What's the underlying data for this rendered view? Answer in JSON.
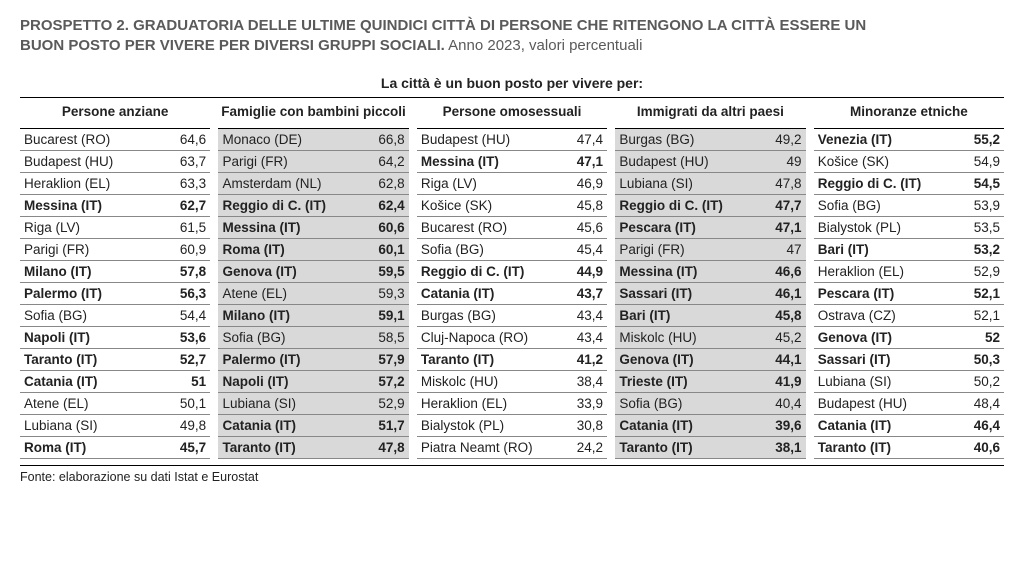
{
  "title_line1": "PROSPETTO 2. GRADUATORIA DELLE ULTIME QUINDICI CITTÀ DI PERSONE CHE RITENGONO LA CITTÀ ESSERE UN",
  "title_line2": "BUON POSTO PER VIVERE PER DIVERSI GRUPPI SOCIALI.",
  "subtitle": " Anno 2023, valori percentuali",
  "super_header": "La città è un buon posto per vivere per:",
  "footer": "Fonte: elaborazione su dati Istat e Eurostat",
  "style": {
    "bold_color": "#000000",
    "shade_bg": "#d9d9d9",
    "border_color": "#888888",
    "title_color": "#5a5a5a",
    "fontsize_body": 13.5,
    "fontsize_title": 15
  },
  "groups": [
    {
      "label": "Persone anziane",
      "shaded": false
    },
    {
      "label": "Famiglie con bambini piccoli",
      "shaded": true
    },
    {
      "label": "Persone omosessuali",
      "shaded": false
    },
    {
      "label": "Immigrati da altri paesi",
      "shaded": true
    },
    {
      "label": "Minoranze etniche",
      "shaded": false
    }
  ],
  "rows": [
    [
      {
        "city": "Bucarest (RO)",
        "val": "64,6",
        "bold": false
      },
      {
        "city": "Monaco (DE)",
        "val": "66,8",
        "bold": false
      },
      {
        "city": "Budapest (HU)",
        "val": "47,4",
        "bold": false
      },
      {
        "city": "Burgas (BG)",
        "val": "49,2",
        "bold": false
      },
      {
        "city": "Venezia (IT)",
        "val": "55,2",
        "bold": true
      }
    ],
    [
      {
        "city": "Budapest (HU)",
        "val": "63,7",
        "bold": false
      },
      {
        "city": "Parigi (FR)",
        "val": "64,2",
        "bold": false
      },
      {
        "city": "Messina (IT)",
        "val": "47,1",
        "bold": true
      },
      {
        "city": "Budapest (HU)",
        "val": "49",
        "bold": false
      },
      {
        "city": "Košice (SK)",
        "val": "54,9",
        "bold": false
      }
    ],
    [
      {
        "city": "Heraklion (EL)",
        "val": "63,3",
        "bold": false
      },
      {
        "city": "Amsterdam (NL)",
        "val": "62,8",
        "bold": false
      },
      {
        "city": "Riga (LV)",
        "val": "46,9",
        "bold": false
      },
      {
        "city": "Lubiana (SI)",
        "val": "47,8",
        "bold": false
      },
      {
        "city": "Reggio di C. (IT)",
        "val": "54,5",
        "bold": true
      }
    ],
    [
      {
        "city": "Messina (IT)",
        "val": "62,7",
        "bold": true
      },
      {
        "city": "Reggio di C. (IT)",
        "val": "62,4",
        "bold": true
      },
      {
        "city": "Košice (SK)",
        "val": "45,8",
        "bold": false
      },
      {
        "city": "Reggio di C. (IT)",
        "val": "47,7",
        "bold": true
      },
      {
        "city": "Sofia (BG)",
        "val": "53,9",
        "bold": false
      }
    ],
    [
      {
        "city": "Riga (LV)",
        "val": "61,5",
        "bold": false
      },
      {
        "city": "Messina (IT)",
        "val": "60,6",
        "bold": true
      },
      {
        "city": "Bucarest (RO)",
        "val": "45,6",
        "bold": false
      },
      {
        "city": "Pescara (IT)",
        "val": "47,1",
        "bold": true
      },
      {
        "city": "Bialystok (PL)",
        "val": "53,5",
        "bold": false
      }
    ],
    [
      {
        "city": "Parigi (FR)",
        "val": "60,9",
        "bold": false
      },
      {
        "city": "Roma (IT)",
        "val": "60,1",
        "bold": true
      },
      {
        "city": "Sofia (BG)",
        "val": "45,4",
        "bold": false
      },
      {
        "city": "Parigi (FR)",
        "val": "47",
        "bold": false
      },
      {
        "city": "Bari (IT)",
        "val": "53,2",
        "bold": true
      }
    ],
    [
      {
        "city": "Milano (IT)",
        "val": "57,8",
        "bold": true
      },
      {
        "city": "Genova (IT)",
        "val": "59,5",
        "bold": true
      },
      {
        "city": "Reggio di C. (IT)",
        "val": "44,9",
        "bold": true
      },
      {
        "city": "Messina (IT)",
        "val": "46,6",
        "bold": true
      },
      {
        "city": "Heraklion (EL)",
        "val": "52,9",
        "bold": false
      }
    ],
    [
      {
        "city": "Palermo (IT)",
        "val": "56,3",
        "bold": true
      },
      {
        "city": "Atene (EL)",
        "val": "59,3",
        "bold": false
      },
      {
        "city": "Catania (IT)",
        "val": "43,7",
        "bold": true
      },
      {
        "city": "Sassari (IT)",
        "val": "46,1",
        "bold": true
      },
      {
        "city": "Pescara (IT)",
        "val": "52,1",
        "bold": true
      }
    ],
    [
      {
        "city": "Sofia (BG)",
        "val": "54,4",
        "bold": false
      },
      {
        "city": "Milano (IT)",
        "val": "59,1",
        "bold": true
      },
      {
        "city": "Burgas (BG)",
        "val": "43,4",
        "bold": false
      },
      {
        "city": "Bari (IT)",
        "val": "45,8",
        "bold": true
      },
      {
        "city": "Ostrava (CZ)",
        "val": "52,1",
        "bold": false
      }
    ],
    [
      {
        "city": "Napoli (IT)",
        "val": "53,6",
        "bold": true
      },
      {
        "city": "Sofia (BG)",
        "val": "58,5",
        "bold": false
      },
      {
        "city": "Cluj-Napoca (RO)",
        "val": "43,4",
        "bold": false
      },
      {
        "city": "Miskolc (HU)",
        "val": "45,2",
        "bold": false
      },
      {
        "city": "Genova (IT)",
        "val": "52",
        "bold": true
      }
    ],
    [
      {
        "city": "Taranto (IT)",
        "val": "52,7",
        "bold": true
      },
      {
        "city": "Palermo (IT)",
        "val": "57,9",
        "bold": true
      },
      {
        "city": "Taranto (IT)",
        "val": "41,2",
        "bold": true
      },
      {
        "city": "Genova (IT)",
        "val": "44,1",
        "bold": true
      },
      {
        "city": "Sassari (IT)",
        "val": "50,3",
        "bold": true
      }
    ],
    [
      {
        "city": "Catania (IT)",
        "val": "51",
        "bold": true
      },
      {
        "city": "Napoli (IT)",
        "val": "57,2",
        "bold": true
      },
      {
        "city": "Miskolc (HU)",
        "val": "38,4",
        "bold": false
      },
      {
        "city": "Trieste (IT)",
        "val": "41,9",
        "bold": true
      },
      {
        "city": "Lubiana (SI)",
        "val": "50,2",
        "bold": false
      }
    ],
    [
      {
        "city": "Atene (EL)",
        "val": "50,1",
        "bold": false
      },
      {
        "city": "Lubiana (SI)",
        "val": "52,9",
        "bold": false
      },
      {
        "city": "Heraklion (EL)",
        "val": "33,9",
        "bold": false
      },
      {
        "city": "Sofia (BG)",
        "val": "40,4",
        "bold": false
      },
      {
        "city": "Budapest (HU)",
        "val": "48,4",
        "bold": false
      }
    ],
    [
      {
        "city": "Lubiana (SI)",
        "val": "49,8",
        "bold": false
      },
      {
        "city": "Catania (IT)",
        "val": "51,7",
        "bold": true
      },
      {
        "city": "Bialystok (PL)",
        "val": "30,8",
        "bold": false
      },
      {
        "city": "Catania (IT)",
        "val": "39,6",
        "bold": true
      },
      {
        "city": "Catania (IT)",
        "val": "46,4",
        "bold": true
      }
    ],
    [
      {
        "city": "Roma (IT)",
        "val": "45,7",
        "bold": true
      },
      {
        "city": "Taranto (IT)",
        "val": "47,8",
        "bold": true
      },
      {
        "city": "Piatra Neamt (RO)",
        "val": "24,2",
        "bold": false
      },
      {
        "city": "Taranto (IT)",
        "val": "38,1",
        "bold": true
      },
      {
        "city": "Taranto (IT)",
        "val": "40,6",
        "bold": true
      }
    ]
  ]
}
